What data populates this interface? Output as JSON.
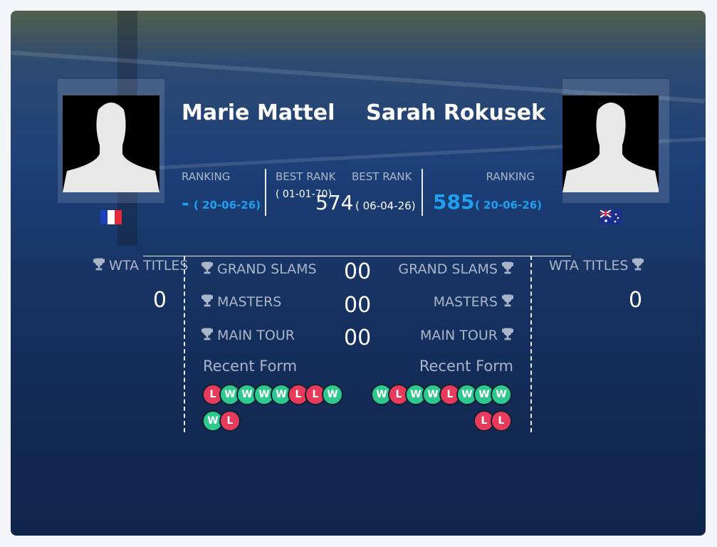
{
  "player1": {
    "name": "Marie Mattel",
    "ranking_label": "RANKING",
    "ranking": "-",
    "ranking_date": "( 20-06-26)",
    "best_rank_label": "BEST RANK",
    "best_rank_date": "( 01-01-70)",
    "titles_label": "WTA TITLES",
    "titles": "0",
    "grand_slams_label": "GRAND SLAMS",
    "masters_label": "MASTERS",
    "main_tour_label": "MAIN TOUR",
    "recent_form_label": "Recent Form",
    "recent_form": [
      "L",
      "W",
      "W",
      "W",
      "W",
      "L",
      "L",
      "W",
      "W",
      "L"
    ]
  },
  "player2": {
    "name": "Sarah Rokusek",
    "ranking_label": "RANKING",
    "ranking": "585",
    "ranking_date": "( 20-06-26)",
    "best_rank_label": "BEST RANK",
    "best_rank": "574",
    "best_rank_date": "( 06-04-26)",
    "titles_label": "WTA TITLES",
    "titles": "0",
    "grand_slams_label": "GRAND SLAMS",
    "masters_label": "MASTERS",
    "main_tour_label": "MAIN TOUR",
    "recent_form_label": "Recent Form",
    "recent_form": [
      "W",
      "L",
      "W",
      "W",
      "L",
      "W",
      "W",
      "W",
      "L",
      "L"
    ]
  },
  "head_to_head": {
    "grand_slams": "00",
    "masters": "00",
    "main_tour": "00"
  }
}
